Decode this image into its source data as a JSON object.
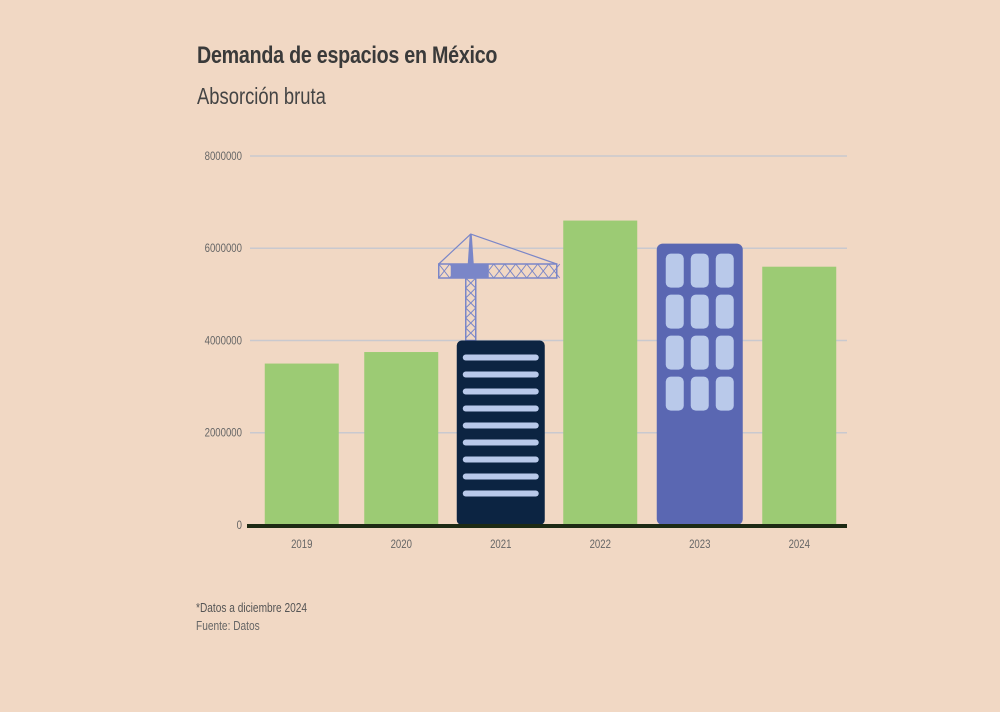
{
  "chart_data": {
    "type": "bar",
    "title": "Demanda de espacios en México",
    "subtitle": "Absorción bruta",
    "categories": [
      "2019",
      "2020",
      "2021",
      "2022",
      "2023",
      "2024"
    ],
    "values": [
      3500000,
      3750000,
      4000000,
      6600000,
      6100000,
      5600000
    ],
    "ylim": [
      0,
      8000000
    ],
    "yticks": [
      "0",
      "2000000",
      "4000000",
      "6000000",
      "8000000"
    ],
    "grid": true,
    "bar_styles": [
      "plain",
      "plain",
      "building-dark-with-crane",
      "plain",
      "building-blue-windows",
      "plain"
    ],
    "colors": {
      "bar": "#9ccb74",
      "building_dark": "#0c2442",
      "building_blue": "#5a67b2",
      "window": "#b9c9ea",
      "crane": "#7a86c8",
      "axis": "#1d2a14",
      "grid": "#c9c9cf",
      "background": "#f1d8c4"
    },
    "footnote": "*Datos a diciembre 2024",
    "source": "Fuente: Datos"
  }
}
